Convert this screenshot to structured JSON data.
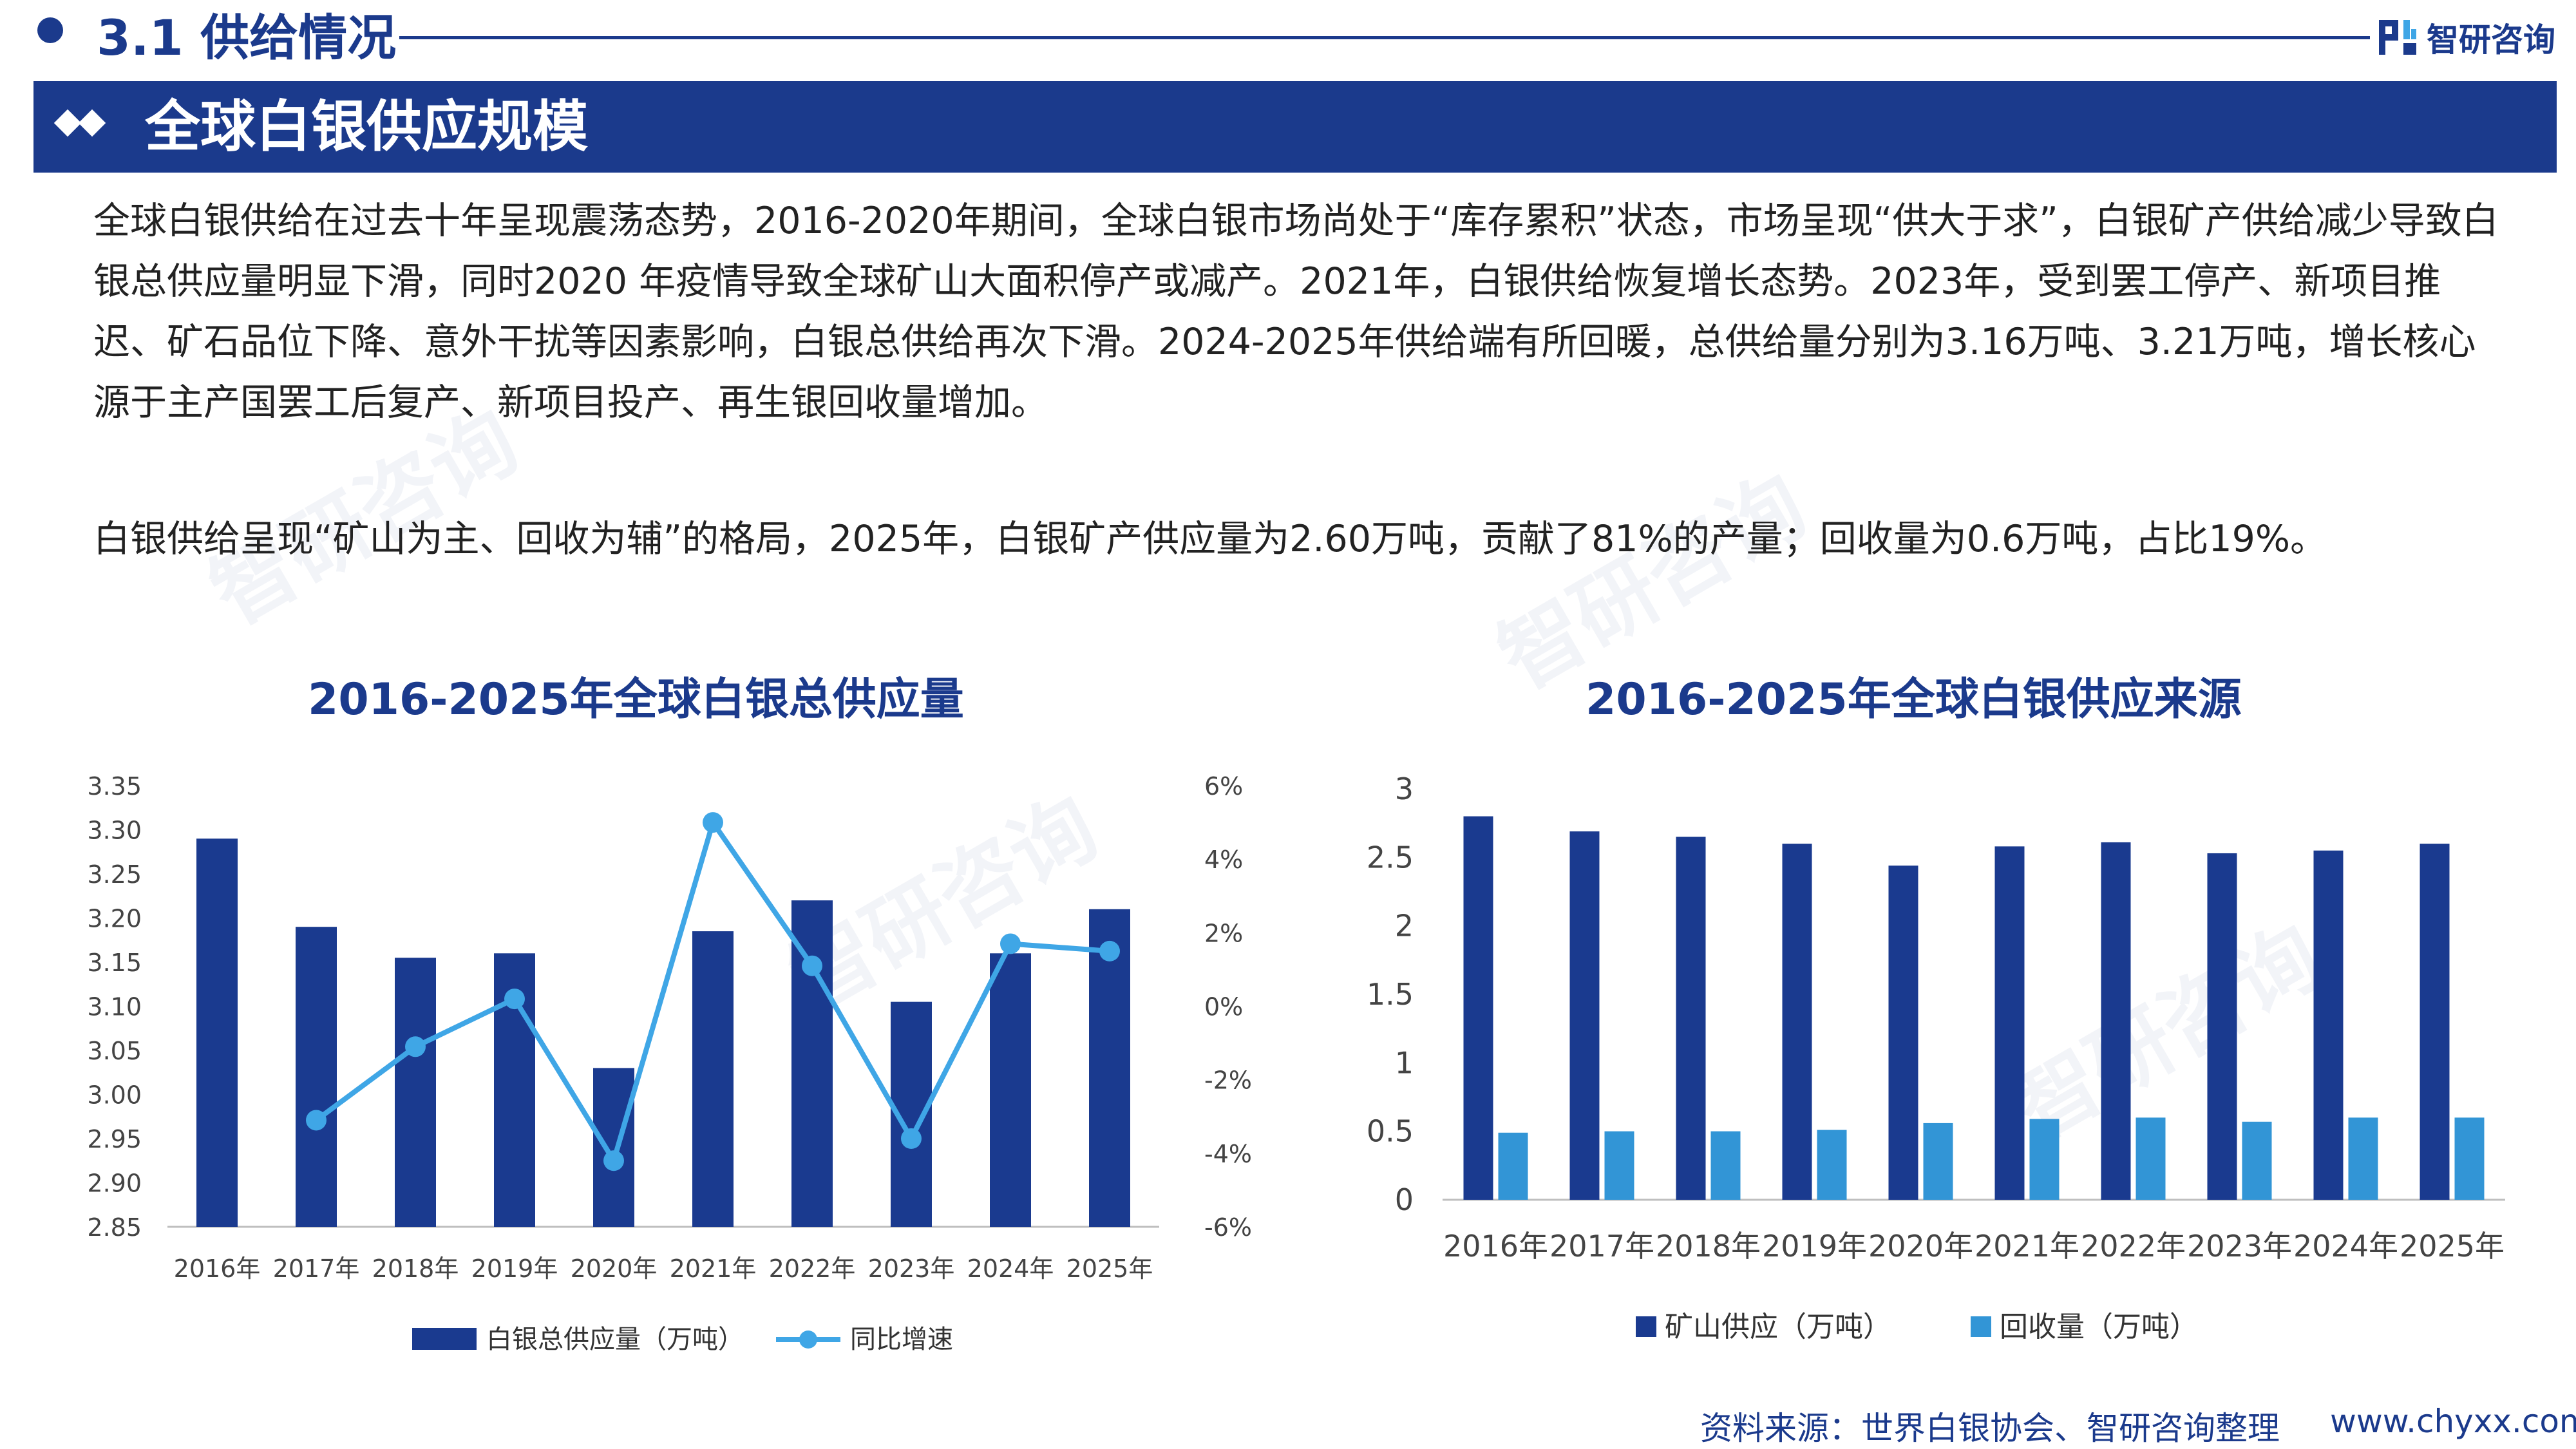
{
  "header": {
    "section_title": "3.1 供给情况",
    "logo_text": "智研咨询",
    "banner_title": "全球白银供应规模"
  },
  "paragraphs": {
    "p1": "全球白银供给在过去十年呈现震荡态势，2016-2020年期间，全球白银市场尚处于“库存累积”状态，市场呈现“供大于求”，白银矿产供给减少导致白银总供应量明显下滑，同时2020  年疫情导致全球矿山大面积停产或减产。2021年，白银供给恢复增长态势。2023年，受到罢工停产、新项目推迟、矿石品位下降、意外干扰等因素影响，白银总供给再次下滑。2024-2025年供给端有所回暖，总供给量分别为3.16万吨、3.21万吨，增长核心源于主产国罢工后复产、新项目投产、再生银回收量增加。",
    "p2": "白银供给呈现“矿山为主、回收为辅”的格局，2025年，白银矿产供应量为2.60万吨，贡献了81%的产量；回收量为0.6万吨，占比19%。"
  },
  "footer": {
    "source": "资料来源：世界白银协会、智研咨询整理",
    "website": "www.chyxx.com"
  },
  "colors": {
    "navy": "#1b3a8c",
    "bar_dark": "#1a3a8f",
    "line_blue": "#3fa6e6",
    "bar_light": "#3295d6"
  },
  "chart_data": [
    {
      "type": "bar",
      "title": "2016-2025年全球白银总供应量",
      "categories": [
        "2016年",
        "2017年",
        "2018年",
        "2019年",
        "2020年",
        "2021年",
        "2022年",
        "2023年",
        "2024年",
        "2025年"
      ],
      "series": [
        {
          "name": "白银总供应量（万吨）",
          "kind": "bar",
          "axis": "left",
          "values": [
            3.29,
            3.19,
            3.155,
            3.16,
            3.03,
            3.185,
            3.22,
            3.105,
            3.16,
            3.21
          ]
        },
        {
          "name": "同比增速",
          "kind": "line",
          "axis": "right",
          "values": [
            null,
            -3.1,
            -1.1,
            0.2,
            -4.2,
            5.0,
            1.1,
            -3.6,
            1.7,
            1.5
          ]
        }
      ],
      "y_left": {
        "min": 2.85,
        "max": 3.35,
        "step": 0.05,
        "ticks": [
          "2.85",
          "2.90",
          "2.95",
          "3.00",
          "3.05",
          "3.10",
          "3.15",
          "3.20",
          "3.25",
          "3.30",
          "3.35"
        ]
      },
      "y_right": {
        "min": -6,
        "max": 6,
        "step": 2,
        "ticks": [
          "-6%",
          "-4%",
          "-2%",
          "0%",
          "2%",
          "4%",
          "6%"
        ]
      },
      "legend": {
        "bar": "白银总供应量（万吨）",
        "line": "同比增速"
      },
      "legend_position": "bottom"
    },
    {
      "type": "bar",
      "title": "2016-2025年全球白银供应来源",
      "categories": [
        "2016年",
        "2017年",
        "2018年",
        "2019年",
        "2020年",
        "2021年",
        "2022年",
        "2023年",
        "2024年",
        "2025年"
      ],
      "series": [
        {
          "name": "矿山供应（万吨）",
          "values": [
            2.8,
            2.69,
            2.65,
            2.6,
            2.44,
            2.58,
            2.61,
            2.53,
            2.55,
            2.6
          ]
        },
        {
          "name": "回收量（万吨）",
          "values": [
            0.49,
            0.5,
            0.5,
            0.51,
            0.56,
            0.59,
            0.6,
            0.57,
            0.6,
            0.6
          ]
        }
      ],
      "ylim": [
        0,
        3
      ],
      "y_ticks": [
        "0",
        "0.5",
        "1",
        "1.5",
        "2",
        "2.5",
        "3"
      ],
      "legend": {
        "s1": "矿山供应（万吨）",
        "s2": "回收量（万吨）"
      },
      "legend_position": "bottom"
    }
  ]
}
